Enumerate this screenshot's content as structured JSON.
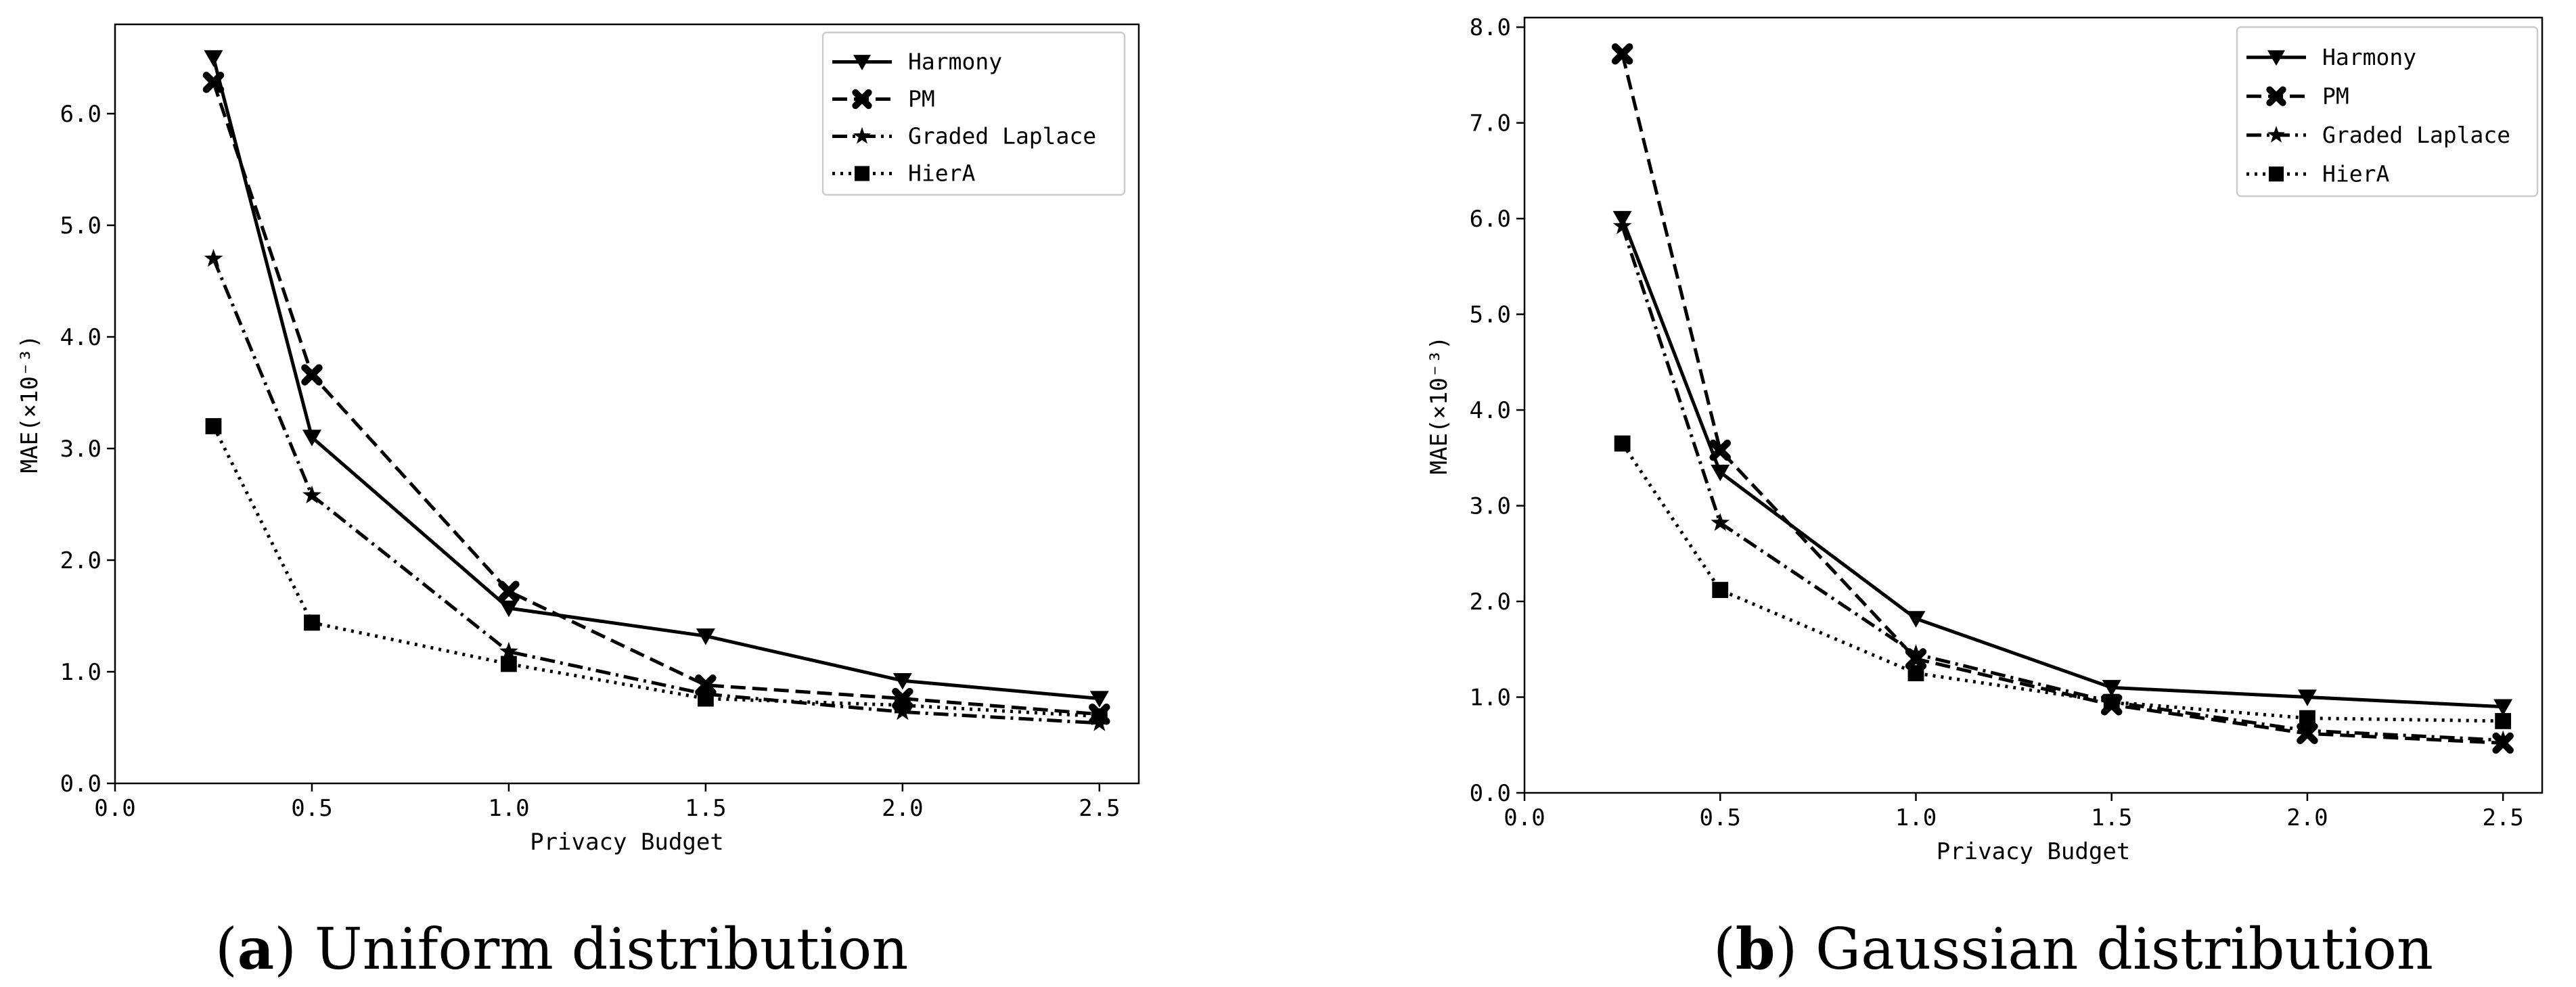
{
  "chart_data": [
    {
      "type": "line",
      "panel": "a",
      "caption_letter": "a",
      "caption_text": " Uniform distribution",
      "xlabel": "Privacy Budget",
      "ylabel": "MAE(×10⁻³)",
      "xlim": [
        0.0,
        2.6
      ],
      "ylim": [
        0.0,
        6.8
      ],
      "xticks": [
        0.0,
        0.5,
        1.0,
        1.5,
        2.0,
        2.5
      ],
      "xtick_labels": [
        "0.0",
        "0.5",
        "1.0",
        "1.5",
        "2.0",
        "2.5"
      ],
      "yticks": [
        0.0,
        1.0,
        2.0,
        3.0,
        4.0,
        5.0,
        6.0
      ],
      "ytick_labels": [
        "0.0",
        "1.0",
        "2.0",
        "3.0",
        "4.0",
        "5.0",
        "6.0"
      ],
      "legend_position": "top-right",
      "x": [
        0.25,
        0.5,
        1.0,
        1.5,
        2.0,
        2.5
      ],
      "series": [
        {
          "name": "Harmony",
          "style": "solid",
          "marker": "triangle-down",
          "values": [
            6.5,
            3.1,
            1.57,
            1.32,
            0.92,
            0.76
          ]
        },
        {
          "name": "PM",
          "style": "dashed",
          "marker": "x-filled",
          "values": [
            6.28,
            3.66,
            1.72,
            0.88,
            0.76,
            0.62
          ]
        },
        {
          "name": "Graded Laplace",
          "style": "dashdot",
          "marker": "star",
          "values": [
            4.7,
            2.58,
            1.18,
            0.8,
            0.64,
            0.54
          ]
        },
        {
          "name": "HierA",
          "style": "dotted",
          "marker": "square",
          "values": [
            3.2,
            1.44,
            1.07,
            0.76,
            0.7,
            0.6
          ]
        }
      ]
    },
    {
      "type": "line",
      "panel": "b",
      "caption_letter": "b",
      "caption_text": " Gaussian distribution",
      "xlabel": "Privacy Budget",
      "ylabel": "MAE(×10⁻³)",
      "xlim": [
        0.0,
        2.6
      ],
      "ylim": [
        0.0,
        8.1
      ],
      "xticks": [
        0.0,
        0.5,
        1.0,
        1.5,
        2.0,
        2.5
      ],
      "xtick_labels": [
        "0.0",
        "0.5",
        "1.0",
        "1.5",
        "2.0",
        "2.5"
      ],
      "yticks": [
        0.0,
        1.0,
        2.0,
        3.0,
        4.0,
        5.0,
        6.0,
        7.0,
        8.0
      ],
      "ytick_labels": [
        "0.0",
        "1.0",
        "2.0",
        "3.0",
        "4.0",
        "5.0",
        "6.0",
        "7.0",
        "8.0"
      ],
      "legend_position": "top-right",
      "x": [
        0.25,
        0.5,
        1.0,
        1.5,
        2.0,
        2.5
      ],
      "series": [
        {
          "name": "Harmony",
          "style": "solid",
          "marker": "triangle-down",
          "values": [
            6.0,
            3.35,
            1.82,
            1.1,
            1.0,
            0.9
          ]
        },
        {
          "name": "PM",
          "style": "dashed",
          "marker": "x-filled",
          "values": [
            7.72,
            3.58,
            1.4,
            0.92,
            0.62,
            0.52
          ]
        },
        {
          "name": "Graded Laplace",
          "style": "dashdot",
          "marker": "star",
          "values": [
            5.92,
            2.82,
            1.45,
            0.95,
            0.65,
            0.55
          ]
        },
        {
          "name": "HierA",
          "style": "dotted",
          "marker": "square",
          "values": [
            3.65,
            2.12,
            1.25,
            0.95,
            0.78,
            0.75
          ]
        }
      ]
    }
  ]
}
